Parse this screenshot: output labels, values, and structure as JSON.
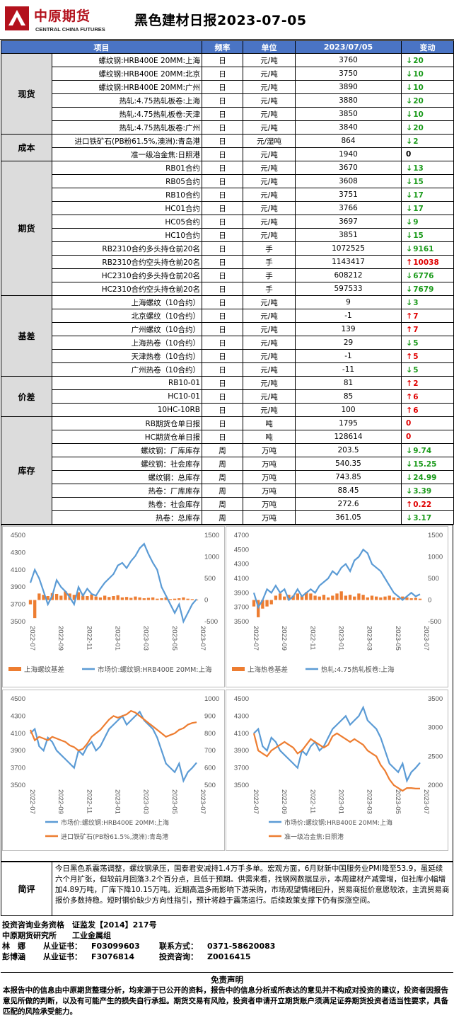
{
  "header": {
    "logo_cn": "中原期货",
    "logo_en": "CENTRAL CHINA FUTURES",
    "title": "黑色建材日报2023-07-05"
  },
  "table": {
    "columns": [
      "项目",
      "频率",
      "单位",
      "2023/07/05",
      "变动"
    ],
    "groups": [
      {
        "name": "现货",
        "rows": [
          {
            "item": "螺纹钢:HRB400E 20MM:上海",
            "freq": "日",
            "unit": "元/吨",
            "value": "3760",
            "dir": "down",
            "change": "20"
          },
          {
            "item": "螺纹钢:HRB400E 20MM:北京",
            "freq": "日",
            "unit": "元/吨",
            "value": "3750",
            "dir": "down",
            "change": "10"
          },
          {
            "item": "螺纹钢:HRB400E 20MM:广州",
            "freq": "日",
            "unit": "元/吨",
            "value": "3890",
            "dir": "down",
            "change": "10"
          },
          {
            "item": "热轧:4.75热轧板卷:上海",
            "freq": "日",
            "unit": "元/吨",
            "value": "3880",
            "dir": "down",
            "change": "20"
          },
          {
            "item": "热轧:4.75热轧板卷:天津",
            "freq": "日",
            "unit": "元/吨",
            "value": "3850",
            "dir": "down",
            "change": "10"
          },
          {
            "item": "热轧:4.75热轧板卷:广州",
            "freq": "日",
            "unit": "元/吨",
            "value": "3840",
            "dir": "down",
            "change": "20"
          }
        ]
      },
      {
        "name": "成本",
        "rows": [
          {
            "item": "进口铁矿石(PB粉61.5%,澳洲):青岛港",
            "freq": "日",
            "unit": "元/湿吨",
            "value": "864",
            "dir": "down",
            "change": "2"
          },
          {
            "item": "准一级冶金焦:日照港",
            "freq": "日",
            "unit": "元/吨",
            "value": "1940",
            "dir": "none",
            "change": "0"
          }
        ]
      },
      {
        "name": "期货",
        "rows": [
          {
            "item": "RB01合约",
            "freq": "日",
            "unit": "元/吨",
            "value": "3670",
            "dir": "down",
            "change": "13"
          },
          {
            "item": "RB05合约",
            "freq": "日",
            "unit": "元/吨",
            "value": "3608",
            "dir": "down",
            "change": "15"
          },
          {
            "item": "RB10合约",
            "freq": "日",
            "unit": "元/吨",
            "value": "3751",
            "dir": "down",
            "change": "17"
          },
          {
            "item": "HC01合约",
            "freq": "日",
            "unit": "元/吨",
            "value": "3766",
            "dir": "down",
            "change": "17"
          },
          {
            "item": "HC05合约",
            "freq": "日",
            "unit": "元/吨",
            "value": "3697",
            "dir": "down",
            "change": "9"
          },
          {
            "item": "HC10合约",
            "freq": "日",
            "unit": "元/吨",
            "value": "3851",
            "dir": "down",
            "change": "15"
          },
          {
            "item": "RB2310合约多头持仓前20名",
            "freq": "日",
            "unit": "手",
            "value": "1072525",
            "dir": "down",
            "change": "9161"
          },
          {
            "item": "RB2310合约空头持仓前20名",
            "freq": "日",
            "unit": "手",
            "value": "1143417",
            "dir": "up",
            "change": "10038"
          },
          {
            "item": "HC2310合约多头持仓前20名",
            "freq": "日",
            "unit": "手",
            "value": "608212",
            "dir": "down",
            "change": "6776"
          },
          {
            "item": "HC2310合约空头持仓前20名",
            "freq": "日",
            "unit": "手",
            "value": "597533",
            "dir": "down",
            "change": "7679"
          }
        ]
      },
      {
        "name": "基差",
        "rows": [
          {
            "item": "上海螺纹（10合约）",
            "freq": "日",
            "unit": "元/吨",
            "value": "9",
            "dir": "down",
            "change": "3"
          },
          {
            "item": "北京螺纹（10合约）",
            "freq": "日",
            "unit": "元/吨",
            "value": "-1",
            "dir": "up",
            "change": "7"
          },
          {
            "item": "广州螺纹（10合约）",
            "freq": "日",
            "unit": "元/吨",
            "value": "139",
            "dir": "up",
            "change": "7"
          },
          {
            "item": "上海热卷（10合约）",
            "freq": "日",
            "unit": "元/吨",
            "value": "29",
            "dir": "down",
            "change": "5"
          },
          {
            "item": "天津热卷（10合约）",
            "freq": "日",
            "unit": "元/吨",
            "value": "-1",
            "dir": "up",
            "change": "5"
          },
          {
            "item": "广州热卷（10合约）",
            "freq": "日",
            "unit": "元/吨",
            "value": "-11",
            "dir": "down",
            "change": "5"
          }
        ]
      },
      {
        "name": "价差",
        "rows": [
          {
            "item": "RB10-01",
            "freq": "日",
            "unit": "元/吨",
            "value": "81",
            "dir": "up",
            "change": "2"
          },
          {
            "item": "HC10-01",
            "freq": "日",
            "unit": "元/吨",
            "value": "85",
            "dir": "up",
            "change": "6"
          },
          {
            "item": "10HC-10RB",
            "freq": "日",
            "unit": "元/吨",
            "value": "100",
            "dir": "up",
            "change": "6"
          }
        ]
      },
      {
        "name": "库存",
        "rows": [
          {
            "item": "RB期货仓单日报",
            "freq": "日",
            "unit": "吨",
            "value": "1795",
            "dir": "zero",
            "change": "0"
          },
          {
            "item": "HC期货仓单日报",
            "freq": "日",
            "unit": "吨",
            "value": "128614",
            "dir": "zero",
            "change": "0"
          },
          {
            "item": "螺纹钢：厂库库存",
            "freq": "周",
            "unit": "万吨",
            "value": "203.5",
            "dir": "down",
            "change": "9.74"
          },
          {
            "item": "螺纹钢：社会库存",
            "freq": "周",
            "unit": "万吨",
            "value": "540.35",
            "dir": "down",
            "change": "15.25"
          },
          {
            "item": "螺纹钢：总库存",
            "freq": "周",
            "unit": "万吨",
            "value": "743.85",
            "dir": "down",
            "change": "24.99"
          },
          {
            "item": "热卷：厂库库存",
            "freq": "周",
            "unit": "万吨",
            "value": "88.45",
            "dir": "down",
            "change": "3.39"
          },
          {
            "item": "热卷：社会库存",
            "freq": "周",
            "unit": "万吨",
            "value": "272.6",
            "dir": "up",
            "change": "0.22"
          },
          {
            "item": "热卷：总库存",
            "freq": "周",
            "unit": "万吨",
            "value": "361.05",
            "dir": "down",
            "change": "3.17"
          }
        ]
      }
    ]
  },
  "colors": {
    "header_blue": "#4a74c4",
    "up": "#e00000",
    "down": "#1a9a1a",
    "line_blue": "#5b9bd5",
    "line_orange": "#ed7d31"
  },
  "chart_data": [
    {
      "type": "line",
      "x_ticks": [
        "2022-07",
        "2022-09",
        "2022-11",
        "2023-01",
        "2023-03",
        "2023-05",
        "2023-07"
      ],
      "yleft_ticks": [
        "4500",
        "4300",
        "4100",
        "3900",
        "3700",
        "3500"
      ],
      "yright_ticks": [
        "1500",
        "1000",
        "500",
        "0",
        "-500"
      ],
      "series": [
        {
          "name": "上海螺纹基差",
          "kind": "bar",
          "axis": "right",
          "color": "#ed7d31",
          "values": [
            -100,
            -420,
            150,
            120,
            90,
            160,
            140,
            100,
            200,
            150,
            120,
            180,
            100,
            90,
            130,
            80,
            60,
            100,
            70,
            90,
            110,
            60,
            70,
            50,
            80,
            60,
            40,
            50,
            60,
            30,
            40,
            60,
            20,
            30,
            40,
            60,
            30,
            20,
            10
          ]
        },
        {
          "name": "市场价:螺纹钢:HRB400E 20MM:上海",
          "kind": "line",
          "axis": "left",
          "color": "#5b9bd5",
          "values": [
            3950,
            4100,
            4000,
            3850,
            3700,
            3800,
            3980,
            3900,
            3850,
            3780,
            3700,
            3900,
            3800,
            3880,
            3820,
            3800,
            3880,
            3950,
            4000,
            4050,
            4150,
            4180,
            4120,
            4200,
            4260,
            4350,
            4400,
            4280,
            4180,
            4100,
            3900,
            3800,
            3700,
            3600,
            3700,
            3500,
            3600,
            3700,
            3760
          ]
        }
      ]
    },
    {
      "type": "line",
      "x_ticks": [
        "2022-07",
        "2022-09",
        "2022-11",
        "2023-01",
        "2023-03",
        "2023-05",
        "2023-07"
      ],
      "yleft_ticks": [
        "4700",
        "4500",
        "4300",
        "4100",
        "3900",
        "3700",
        "3500"
      ],
      "yright_ticks": [
        "1500",
        "1000",
        "500",
        "0",
        "-500"
      ],
      "series": [
        {
          "name": "上海热卷基差",
          "kind": "bar",
          "axis": "right",
          "color": "#ed7d31",
          "values": [
            -150,
            -400,
            -200,
            -150,
            -100,
            100,
            150,
            80,
            120,
            100,
            150,
            100,
            180,
            150,
            100,
            80,
            120,
            60,
            100,
            150,
            200,
            100,
            120,
            80,
            150,
            120,
            60,
            100,
            80,
            60,
            80,
            100,
            60,
            40,
            80,
            60,
            40,
            50,
            30
          ]
        },
        {
          "name": "热轧:4.75热轧板卷:上海",
          "kind": "line",
          "axis": "left",
          "color": "#5b9bd5",
          "values": [
            3900,
            3700,
            3800,
            3950,
            3900,
            4000,
            3900,
            3950,
            3800,
            3850,
            3950,
            3850,
            3900,
            3950,
            3900,
            4000,
            4050,
            4100,
            4200,
            4150,
            4250,
            4300,
            4200,
            4350,
            4400,
            4500,
            4450,
            4300,
            4250,
            4200,
            4100,
            4000,
            3900,
            3850,
            3800,
            3850,
            3900,
            3850,
            3880
          ]
        }
      ]
    },
    {
      "type": "line",
      "x_ticks": [
        "2022-07",
        "2022-09",
        "2022-11",
        "2023-01",
        "2023-03",
        "2023-05",
        "2023-07"
      ],
      "yleft_ticks": [
        "4500",
        "4300",
        "4100",
        "3900",
        "3700",
        "3500"
      ],
      "yright_ticks": [
        "1000",
        "900",
        "800",
        "700",
        "600",
        "500"
      ],
      "series": [
        {
          "name": "市场价:螺纹钢:HRB400E 20MM:上海",
          "kind": "line",
          "axis": "left",
          "color": "#5b9bd5",
          "values": [
            4100,
            4150,
            3950,
            3900,
            4050,
            4000,
            3900,
            3850,
            3800,
            3750,
            3700,
            3900,
            3850,
            3950,
            4000,
            3900,
            3950,
            4050,
            4150,
            4200,
            4250,
            4300,
            4200,
            4250,
            4300,
            4350,
            4250,
            4200,
            4150,
            4050,
            3900,
            3750,
            3700,
            3650,
            3750,
            3550,
            3650,
            3700,
            3760
          ]
        },
        {
          "name": "进口铁矿石(PB粉61.5%,澳洲):青岛港",
          "kind": "line",
          "axis": "right",
          "color": "#ed7d31",
          "values": [
            820,
            760,
            780,
            770,
            760,
            780,
            770,
            760,
            750,
            730,
            720,
            700,
            710,
            740,
            780,
            800,
            820,
            850,
            880,
            900,
            890,
            900,
            910,
            930,
            920,
            900,
            880,
            860,
            840,
            820,
            800,
            780,
            790,
            800,
            820,
            830,
            850,
            860,
            864
          ]
        }
      ]
    },
    {
      "type": "line",
      "x_ticks": [
        "2022-07",
        "2022-09",
        "2022-11",
        "2023-01",
        "2023-03",
        "2023-05",
        "2023-07"
      ],
      "yleft_ticks": [
        "4500",
        "4300",
        "4100",
        "3900",
        "3700",
        "3500"
      ],
      "yright_ticks": [
        "3500",
        "3000",
        "2500",
        "2000"
      ],
      "series": [
        {
          "name": "市场价:螺纹钢:HRB400E 20MM:上海",
          "kind": "line",
          "axis": "left",
          "color": "#5b9bd5",
          "values": [
            4100,
            4150,
            3950,
            3900,
            4050,
            4000,
            3900,
            3850,
            3800,
            3750,
            3700,
            3900,
            3850,
            3950,
            4000,
            3900,
            3950,
            4050,
            4150,
            4200,
            4250,
            4300,
            4200,
            4250,
            4300,
            4400,
            4250,
            4200,
            4150,
            4050,
            3900,
            3750,
            3700,
            3650,
            3750,
            3550,
            3650,
            3700,
            3760
          ]
        },
        {
          "name": "准一级冶金焦:日照港",
          "kind": "line",
          "axis": "right",
          "color": "#ed7d31",
          "values": [
            2900,
            2600,
            2550,
            2500,
            2600,
            2650,
            2700,
            2750,
            2700,
            2650,
            2550,
            2600,
            2700,
            2800,
            2750,
            2700,
            2650,
            2700,
            2850,
            2900,
            2850,
            2800,
            2750,
            2800,
            2750,
            2700,
            2600,
            2550,
            2500,
            2350,
            2250,
            2100,
            2000,
            1950,
            1900,
            1950,
            1950,
            1940,
            1940
          ]
        }
      ]
    }
  ],
  "review": {
    "label": "简评",
    "text": "今日黑色系震荡调整，螺纹钢承压，国泰君安减持1.4万手多单。宏观方面，6月财新中国服务业PMI降至53.9，虽延续六个月扩张，但较前月回落3.2个百分点，且低于预期。供需来看，找钢网数据显示，本周建材产减需增，但社库小幅增加4.89万吨，厂库下降10.15万吨。近期高温多雨影响下游采购，市场观望情绪回升，贸易商挺价意愿较浓，主流贸易商报价多数持稳。短时钢价缺少方向性指引，预计将趋于震荡运行。后续政策支撑下仍有探涨空间。"
  },
  "qualification": {
    "line1": "投资咨询业务资格　证监发【2014】217号",
    "line2": "中原期货研究所　　工业金属组",
    "people": [
      {
        "name": "林　娜",
        "cert_label": "从业证书：",
        "cert": "F03099603",
        "extra_label": "联系方式：",
        "extra": "0371-58620083"
      },
      {
        "name": "彭博涵",
        "cert_label": "从业证书：",
        "cert": "F3076814",
        "extra_label": "投资咨询：",
        "extra": "Z0016415"
      }
    ]
  },
  "disclaimer": {
    "title": "免责声明",
    "text": "本报告中的信息由中原期货整理分析，均来源于已公开的资料，报告中的信息分析或所表达的意见并不构成对投资的建议，投资者因报告意见所做的判断，以及有可能产生的损失自行承担。期货交易有风险，投资者申请开立期货账户须满足证券期货投资者适当性要求，具备匹配的风险承受能力。"
  }
}
